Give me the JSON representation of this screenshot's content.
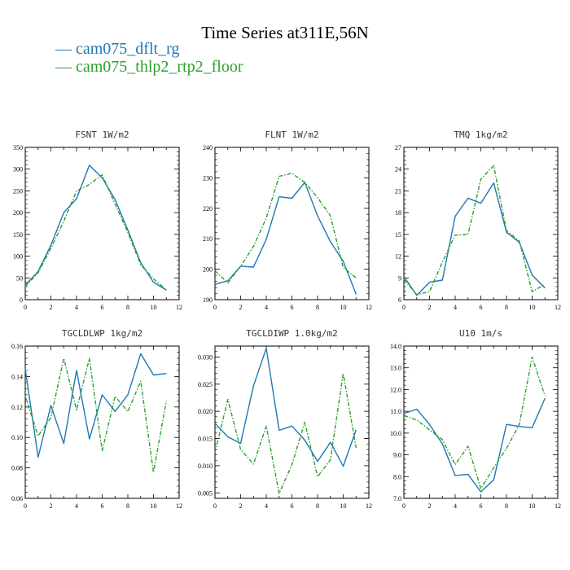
{
  "title": "Time Series at311E,56N",
  "legend": [
    {
      "label": "cam075_dflt_rg",
      "color": "#1f77b4"
    },
    {
      "label": "cam075_thlp2_rtp2_floor",
      "color": "#2ca02c"
    }
  ],
  "chart_data": [
    {
      "type": "line",
      "title": "FSNT  1W/m2",
      "x": [
        0,
        1,
        2,
        3,
        4,
        5,
        6,
        7,
        8,
        9,
        10,
        11
      ],
      "xlim": [
        0,
        12
      ],
      "xticks": [
        "0",
        "2",
        "4",
        "6",
        "8",
        "10",
        "12"
      ],
      "ylim": [
        0,
        350
      ],
      "yticks": [
        "0",
        "50",
        "100",
        "150",
        "200",
        "250",
        "300",
        "350"
      ],
      "ytick_values": [
        0,
        50,
        100,
        150,
        200,
        250,
        300,
        350
      ],
      "series": [
        {
          "name": "cam075_dflt_rg",
          "values": [
            33,
            65,
            125,
            200,
            232,
            309,
            280,
            230,
            160,
            85,
            40,
            22
          ]
        },
        {
          "name": "cam075_thlp2_rtp2_floor",
          "values": [
            30,
            62,
            118,
            180,
            250,
            265,
            287,
            220,
            155,
            80,
            48,
            22
          ]
        }
      ]
    },
    {
      "type": "line",
      "title": "FLNT  1W/m2",
      "x": [
        0,
        1,
        2,
        3,
        4,
        5,
        6,
        7,
        8,
        9,
        10,
        11
      ],
      "xlim": [
        0,
        12
      ],
      "xticks": [
        "0",
        "2",
        "4",
        "6",
        "8",
        "10",
        "12"
      ],
      "ylim": [
        190,
        240
      ],
      "yticks": [
        "190",
        "200",
        "210",
        "220",
        "230",
        "240"
      ],
      "ytick_values": [
        190,
        200,
        210,
        220,
        230,
        240
      ],
      "series": [
        {
          "name": "cam075_dflt_rg",
          "values": [
            195,
            196.2,
            201,
            200.7,
            209.8,
            223.8,
            223.3,
            228.5,
            217.5,
            209,
            202.6,
            191.8
          ]
        },
        {
          "name": "cam075_thlp2_rtp2_floor",
          "values": [
            199.5,
            195.5,
            201,
            207.5,
            216.8,
            230.5,
            231.5,
            228.5,
            223.5,
            217.5,
            200.5,
            197.2
          ]
        }
      ]
    },
    {
      "type": "line",
      "title": "TMQ  1kg/m2",
      "x": [
        0,
        1,
        2,
        3,
        4,
        5,
        6,
        7,
        8,
        9,
        10,
        11
      ],
      "xlim": [
        0,
        12
      ],
      "xticks": [
        "0",
        "2",
        "4",
        "6",
        "8",
        "10",
        "12"
      ],
      "ylim": [
        6,
        27
      ],
      "yticks": [
        "6",
        "9",
        "12",
        "15",
        "18",
        "21",
        "24",
        "27"
      ],
      "ytick_values": [
        6,
        9,
        12,
        15,
        18,
        21,
        24,
        27
      ],
      "series": [
        {
          "name": "cam075_dflt_rg",
          "values": [
            9.2,
            6.6,
            8.4,
            8.7,
            17.5,
            20,
            19.3,
            22.1,
            15.3,
            13.9,
            9.4,
            7.6
          ]
        },
        {
          "name": "cam075_thlp2_rtp2_floor",
          "values": [
            8.8,
            6.7,
            7.1,
            11.2,
            14.9,
            15,
            22.6,
            24.5,
            15.5,
            14.1,
            7.1,
            8.1
          ]
        }
      ]
    },
    {
      "type": "line",
      "title": "TGCLDLWP  1kg/m2",
      "x": [
        0,
        1,
        2,
        3,
        4,
        5,
        6,
        7,
        8,
        9,
        10,
        11
      ],
      "xlim": [
        0,
        12
      ],
      "xticks": [
        "0",
        "2",
        "4",
        "6",
        "8",
        "10",
        "12"
      ],
      "ylim": [
        0.06,
        0.16
      ],
      "yticks": [
        "0.06",
        "0.08",
        "0.10",
        "0.12",
        "0.14",
        "0.16"
      ],
      "ytick_values": [
        0.06,
        0.08,
        0.1,
        0.12,
        0.14,
        0.16
      ],
      "series": [
        {
          "name": "cam075_dflt_rg",
          "values": [
            0.145,
            0.087,
            0.121,
            0.096,
            0.144,
            0.099,
            0.128,
            0.117,
            0.128,
            0.155,
            0.141,
            0.142
          ]
        },
        {
          "name": "cam075_thlp2_rtp2_floor",
          "values": [
            0.127,
            0.101,
            0.113,
            0.152,
            0.118,
            0.152,
            0.091,
            0.127,
            0.117,
            0.137,
            0.077,
            0.124
          ]
        }
      ]
    },
    {
      "type": "line",
      "title": "TGCLDIWP  1.0kg/m2",
      "x": [
        0,
        1,
        2,
        3,
        4,
        5,
        6,
        7,
        8,
        9,
        10,
        11
      ],
      "xlim": [
        0,
        12
      ],
      "xticks": [
        "0",
        "2",
        "4",
        "6",
        "8",
        "10",
        "12"
      ],
      "ylim": [
        0.004,
        0.032
      ],
      "yticks": [
        "0.005",
        "0.010",
        "0.015",
        "0.020",
        "0.025",
        "0.030"
      ],
      "ytick_values": [
        0.005,
        0.01,
        0.015,
        0.02,
        0.025,
        0.03
      ],
      "series": [
        {
          "name": "cam075_dflt_rg",
          "values": [
            0.0178,
            0.0153,
            0.0141,
            0.0247,
            0.0316,
            0.0165,
            0.0173,
            0.0147,
            0.0108,
            0.0143,
            0.0099,
            0.0166
          ]
        },
        {
          "name": "cam075_thlp2_rtp2_floor",
          "values": [
            0.0124,
            0.0222,
            0.013,
            0.0103,
            0.0173,
            0.0049,
            0.0102,
            0.018,
            0.008,
            0.0111,
            0.027,
            0.0133
          ]
        }
      ]
    },
    {
      "type": "line",
      "title": "U10  1m/s",
      "x": [
        0,
        1,
        2,
        3,
        4,
        5,
        6,
        7,
        8,
        9,
        10,
        11
      ],
      "xlim": [
        0,
        12
      ],
      "xticks": [
        "0",
        "2",
        "4",
        "6",
        "8",
        "10",
        "12"
      ],
      "ylim": [
        7,
        14
      ],
      "yticks": [
        "7.0",
        "8.0",
        "9.0",
        "10.0",
        "11.0",
        "12.0",
        "13.0",
        "14.0"
      ],
      "ytick_values": [
        7,
        8,
        9,
        10,
        11,
        12,
        13,
        14
      ],
      "series": [
        {
          "name": "cam075_dflt_rg",
          "values": [
            10.9,
            11.1,
            10.4,
            9.5,
            8.05,
            8.1,
            7.3,
            7.85,
            10.4,
            10.3,
            10.25,
            11.6
          ]
        },
        {
          "name": "cam075_thlp2_rtp2_floor",
          "values": [
            10.8,
            10.6,
            10.15,
            9.7,
            8.55,
            9.4,
            7.45,
            8.4,
            9.3,
            10.4,
            13.5,
            11.7
          ]
        }
      ]
    }
  ]
}
